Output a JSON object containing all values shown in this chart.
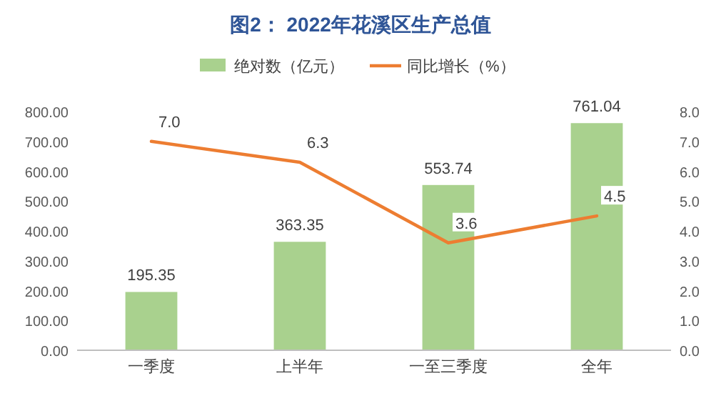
{
  "chart_data": {
    "type": "bar",
    "title": "图2：  2022年花溪区生产总值",
    "categories": [
      "一季度",
      "上半年",
      "一至三季度",
      "全年"
    ],
    "series": [
      {
        "name": "绝对数（亿元）",
        "color": "#a9d18e",
        "values": [
          195.35,
          363.35,
          553.74,
          761.04
        ],
        "value_labels": [
          "195.35",
          "363.35",
          "553.74",
          "761.04"
        ]
      },
      {
        "name": "同比增长（%）",
        "type": "line",
        "axis": "y2",
        "color": "#ed7d31",
        "values": [
          7.0,
          6.3,
          3.6,
          4.5
        ],
        "value_labels": [
          "7.0",
          "6.3",
          "3.6",
          "4.5"
        ]
      }
    ],
    "ylim": [
      0,
      800
    ],
    "yticks": [
      {
        "value": 0,
        "label": "0.00"
      },
      {
        "value": 100,
        "label": "100.00"
      },
      {
        "value": 200,
        "label": "200.00"
      },
      {
        "value": 300,
        "label": "300.00"
      },
      {
        "value": 400,
        "label": "400.00"
      },
      {
        "value": 500,
        "label": "500.00"
      },
      {
        "value": 600,
        "label": "600.00"
      },
      {
        "value": 700,
        "label": "700.00"
      },
      {
        "value": 800,
        "label": "800.00"
      }
    ],
    "y2lim": [
      0,
      8
    ],
    "y2ticks": [
      {
        "value": 0,
        "label": "0.0"
      },
      {
        "value": 1,
        "label": "1.0"
      },
      {
        "value": 2,
        "label": "2.0"
      },
      {
        "value": 3,
        "label": "3.0"
      },
      {
        "value": 4,
        "label": "4.0"
      },
      {
        "value": 5,
        "label": "5.0"
      },
      {
        "value": 6,
        "label": "6.0"
      },
      {
        "value": 7,
        "label": "7.0"
      },
      {
        "value": 8,
        "label": "8.0"
      }
    ],
    "legend": "top",
    "grid": false,
    "marker": "none",
    "line_style": "solid"
  }
}
